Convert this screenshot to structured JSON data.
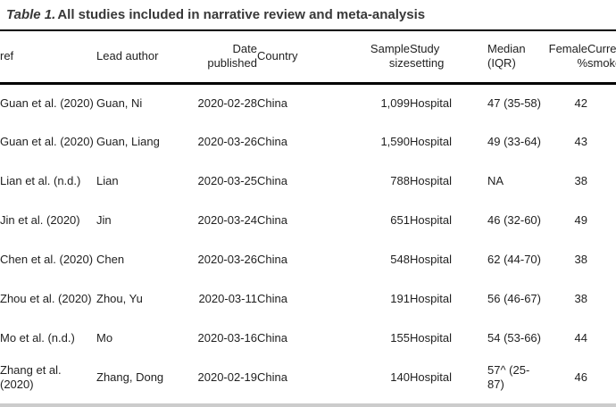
{
  "title": {
    "prefix": "Table 1.",
    "text": "All studies included in narrative review and meta-analysis"
  },
  "colors": {
    "title_text": "#383838",
    "body_text": "#1f1f1f",
    "header_rule": "#000000",
    "bottom_bar": "#cccccc",
    "background": "#ffffff"
  },
  "table": {
    "columns": [
      {
        "key": "ref",
        "label": "ref"
      },
      {
        "key": "lead_author",
        "label": "Lead author"
      },
      {
        "key": "date_published",
        "label": "Date\npublished"
      },
      {
        "key": "country",
        "label": "Country"
      },
      {
        "key": "sample_size",
        "label": "Sample\nsize"
      },
      {
        "key": "study_setting",
        "label": "Study\nsetting"
      },
      {
        "key": "median_iqr",
        "label": "Median\n(IQR)"
      },
      {
        "key": "female_pct",
        "label": "Female\n%"
      },
      {
        "key": "current_smoker",
        "label": "Current\nsmoker"
      }
    ],
    "rows": [
      {
        "ref": "Guan et al. (2020)",
        "lead_author": "Guan, Ni",
        "date_published": "2020-02-28",
        "country": "China",
        "sample_size": "1,099",
        "study_setting": "Hospital",
        "median_iqr": "47 (35-58)",
        "female_pct": "42",
        "current_smoker": ""
      },
      {
        "ref": "Guan et al. (2020)",
        "lead_author": "Guan, Liang",
        "date_published": "2020-03-26",
        "country": "China",
        "sample_size": "1,590",
        "study_setting": "Hospital",
        "median_iqr": "49 (33-64)",
        "female_pct": "43",
        "current_smoker": ""
      },
      {
        "ref": "Lian et al. (n.d.)",
        "lead_author": "Lian",
        "date_published": "2020-03-25",
        "country": "China",
        "sample_size": "788",
        "study_setting": "Hospital",
        "median_iqr": "NA",
        "female_pct": "38",
        "current_smoker": ""
      },
      {
        "ref": "Jin et al. (2020)",
        "lead_author": "Jin",
        "date_published": "2020-03-24",
        "country": "China",
        "sample_size": "651",
        "study_setting": "Hospital",
        "median_iqr": "46 (32-60)",
        "female_pct": "49",
        "current_smoker": ""
      },
      {
        "ref": "Chen et al. (2020)",
        "lead_author": "Chen",
        "date_published": "2020-03-26",
        "country": "China",
        "sample_size": "548",
        "study_setting": "Hospital",
        "median_iqr": "62 (44-70)",
        "female_pct": "38",
        "current_smoker": ""
      },
      {
        "ref": "Zhou et al. (2020)",
        "lead_author": "Zhou, Yu",
        "date_published": "2020-03-11",
        "country": "China",
        "sample_size": "191",
        "study_setting": "Hospital",
        "median_iqr": "56 (46-67)",
        "female_pct": "38",
        "current_smoker": ""
      },
      {
        "ref": "Mo et al. (n.d.)",
        "lead_author": "Mo",
        "date_published": "2020-03-16",
        "country": "China",
        "sample_size": "155",
        "study_setting": "Hospital",
        "median_iqr": "54 (53-66)",
        "female_pct": "44",
        "current_smoker": ""
      },
      {
        "ref": "Zhang et al. (2020)",
        "lead_author": "Zhang, Dong",
        "date_published": "2020-02-19",
        "country": "China",
        "sample_size": "140",
        "study_setting": "Hospital",
        "median_iqr": "57^ (25-87)",
        "female_pct": "46",
        "current_smoker": ""
      }
    ]
  }
}
